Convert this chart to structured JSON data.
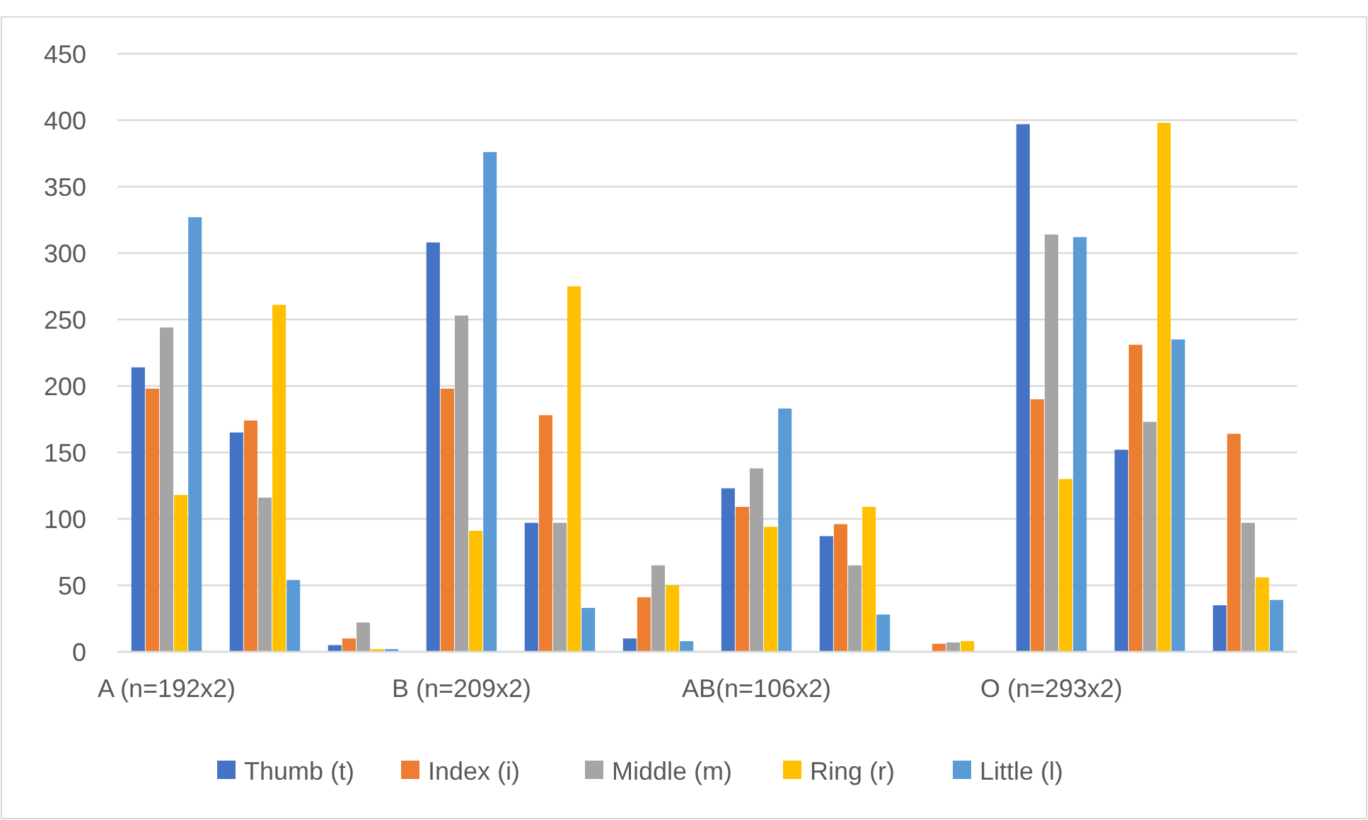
{
  "chart_data": {
    "type": "bar",
    "categories": [
      "A (n=192x2)",
      null,
      null,
      "B (n=209x2)",
      null,
      null,
      "AB(n=106x2)",
      null,
      null,
      "O (n=293x2)",
      null,
      null
    ],
    "series": [
      {
        "name": "Thumb (t)",
        "color": "#4472c4",
        "values": [
          214,
          165,
          5,
          308,
          97,
          10,
          123,
          87,
          0,
          397,
          152,
          35
        ]
      },
      {
        "name": "Index (i)",
        "color": "#ed7d31",
        "values": [
          198,
          174,
          10,
          198,
          178,
          41,
          109,
          96,
          6,
          190,
          231,
          164
        ]
      },
      {
        "name": "Middle (m)",
        "color": "#a5a5a5",
        "values": [
          244,
          116,
          22,
          253,
          97,
          65,
          138,
          65,
          7,
          314,
          173,
          97
        ]
      },
      {
        "name": "Ring (r)",
        "color": "#ffc000",
        "values": [
          118,
          261,
          2,
          91,
          275,
          50,
          94,
          109,
          8,
          130,
          398,
          56
        ]
      },
      {
        "name": "Little (l)",
        "color": "#5b9bd5",
        "values": [
          327,
          54,
          2,
          376,
          33,
          8,
          183,
          28,
          0,
          312,
          235,
          39
        ]
      }
    ],
    "ylim": [
      0,
      450
    ],
    "yticks": [
      0,
      50,
      100,
      150,
      200,
      250,
      300,
      350,
      400,
      450
    ],
    "grid": "y",
    "legend": "bottom"
  }
}
